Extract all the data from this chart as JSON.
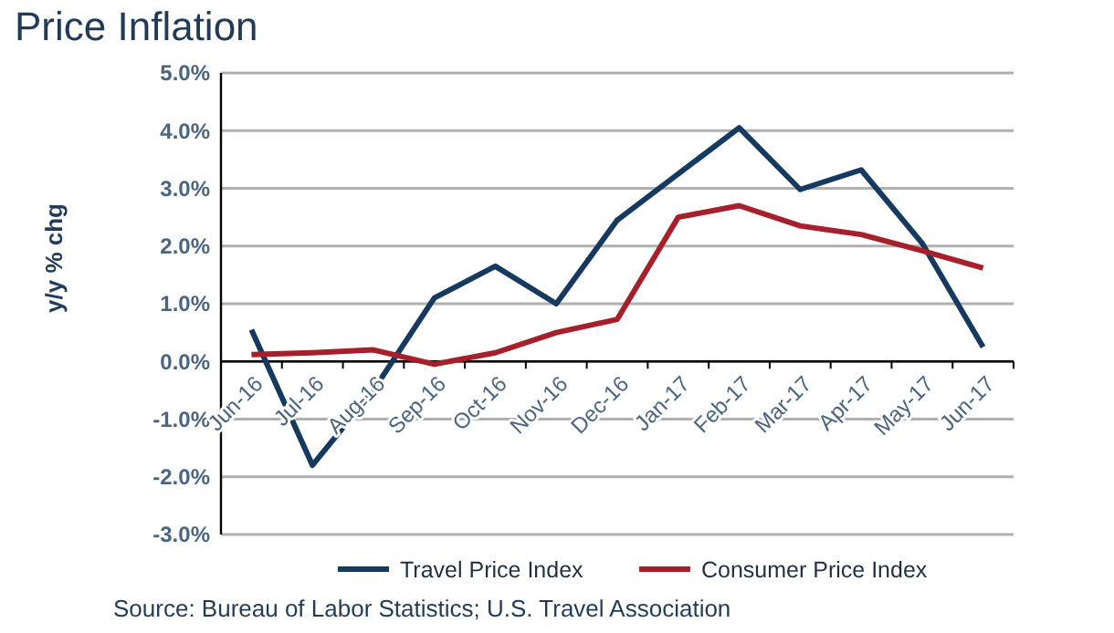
{
  "chart_data": {
    "type": "line",
    "title": "Price Inflation",
    "ylabel": "y/y % chg",
    "categories": [
      "Jun-16",
      "Jul-16",
      "Aug-16",
      "Sep-16",
      "Oct-16",
      "Nov-16",
      "Dec-16",
      "Jan-17",
      "Feb-17",
      "Mar-17",
      "Apr-17",
      "May-17",
      "Jun-17"
    ],
    "series": [
      {
        "name": "Travel Price Index",
        "color": "#163a5f",
        "values": [
          0.55,
          -1.8,
          -0.5,
          1.1,
          1.65,
          1.0,
          2.45,
          3.25,
          4.05,
          2.98,
          3.32,
          2.05,
          0.25
        ]
      },
      {
        "name": "Consumer Price Index",
        "color": "#a5202a",
        "values": [
          0.12,
          0.15,
          0.2,
          -0.05,
          0.15,
          0.5,
          0.73,
          2.5,
          2.7,
          2.35,
          2.2,
          1.92,
          1.62
        ]
      }
    ],
    "ylim": [
      -3,
      5
    ],
    "yticks": [
      {
        "value": 5,
        "label": "5.0%"
      },
      {
        "value": 4,
        "label": "4.0%"
      },
      {
        "value": 3,
        "label": "3.0%"
      },
      {
        "value": 2,
        "label": "2.0%"
      },
      {
        "value": 1,
        "label": "1.0%"
      },
      {
        "value": 0,
        "label": "0.0%"
      },
      {
        "value": -1,
        "label": "-1.0%"
      },
      {
        "value": -2,
        "label": "-2.0%"
      },
      {
        "value": -3,
        "label": "-3.0%"
      }
    ],
    "grid": "y",
    "legend": "bottom",
    "marker": "none",
    "line_style": "solid",
    "annotations": [
      "Source: Bureau of Labor Statistics; U.S. Travel Association"
    ]
  }
}
